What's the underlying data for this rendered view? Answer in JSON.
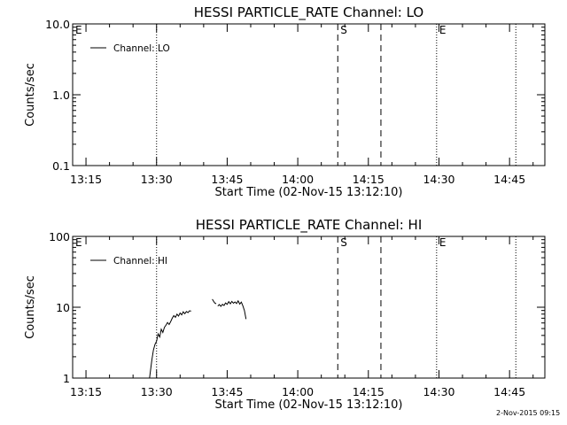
{
  "chart_data": [
    {
      "type": "line",
      "title": "HESSI PARTICLE_RATE Channel: LO",
      "xlabel": "Start Time (02-Nov-15 13:12:10)",
      "ylabel": "Counts/sec",
      "yscale": "log",
      "xlim": [
        "13:12:10",
        "14:52:30"
      ],
      "ylim": [
        0.1,
        10.0
      ],
      "xticks": [
        "13:15",
        "13:30",
        "13:45",
        "14:00",
        "14:15",
        "14:30",
        "14:45"
      ],
      "yticks": [
        "0.1",
        "1.0",
        "10.0"
      ],
      "legend": {
        "position": "top-left",
        "entries": [
          "Channel: LO"
        ]
      },
      "markers": [
        {
          "label": "E",
          "time": "13:12:10",
          "style": "dotted"
        },
        {
          "label": "",
          "time": "13:30:00",
          "style": "dotted"
        },
        {
          "label": "S",
          "time": "14:08:30",
          "style": "dashed"
        },
        {
          "label": "",
          "time": "14:17:40",
          "style": "dashed"
        },
        {
          "label": "E",
          "time": "14:29:30",
          "style": "dotted"
        },
        {
          "label": "",
          "time": "14:46:20",
          "style": "dotted"
        }
      ],
      "series": [
        {
          "name": "Channel: LO",
          "x": [],
          "y": []
        }
      ]
    },
    {
      "type": "line",
      "title": "HESSI PARTICLE_RATE Channel: HI",
      "xlabel": "Start Time (02-Nov-15 13:12:10)",
      "ylabel": "Counts/sec",
      "yscale": "log",
      "xlim": [
        "13:12:10",
        "14:52:30"
      ],
      "ylim": [
        1,
        100
      ],
      "xticks": [
        "13:15",
        "13:30",
        "13:45",
        "14:00",
        "14:15",
        "14:30",
        "14:45"
      ],
      "yticks": [
        "1",
        "10",
        "100"
      ],
      "legend": {
        "position": "top-left",
        "entries": [
          "Channel: HI"
        ]
      },
      "markers": [
        {
          "label": "E",
          "time": "13:12:10",
          "style": "dotted"
        },
        {
          "label": "",
          "time": "13:30:00",
          "style": "dotted"
        },
        {
          "label": "S",
          "time": "14:08:30",
          "style": "dashed"
        },
        {
          "label": "",
          "time": "14:17:40",
          "style": "dashed"
        },
        {
          "label": "E",
          "time": "14:29:30",
          "style": "dotted"
        },
        {
          "label": "",
          "time": "14:46:20",
          "style": "dotted"
        }
      ],
      "series": [
        {
          "name": "Channel: HI",
          "segments": [
            {
              "x": [
                "13:28:30",
                "13:29:00",
                "13:29:20",
                "13:29:40",
                "13:30:00",
                "13:30:20",
                "13:30:40",
                "13:31:00",
                "13:31:20",
                "13:31:40",
                "13:32:00",
                "13:32:20",
                "13:32:40",
                "13:33:00",
                "13:33:20",
                "13:33:40",
                "13:34:00",
                "13:34:20",
                "13:34:40",
                "13:35:00",
                "13:35:20",
                "13:35:40",
                "13:36:00",
                "13:36:20",
                "13:36:40",
                "13:37:00",
                "13:37:20"
              ],
              "y": [
                1.0,
                1.8,
                2.5,
                3.0,
                3.3,
                4.2,
                3.8,
                4.9,
                4.4,
                5.2,
                5.6,
                6.1,
                5.7,
                6.3,
                7.0,
                7.6,
                7.2,
                8.0,
                7.5,
                8.3,
                7.8,
                8.6,
                8.1,
                8.7,
                8.4,
                8.9,
                8.8
              ]
            },
            {
              "x": [
                "13:41:50",
                "13:42:20",
                "13:42:40"
              ],
              "y": [
                13.0,
                11.5,
                11.2
              ]
            },
            {
              "x": [
                "13:43:00",
                "13:43:20",
                "13:43:40",
                "13:44:00",
                "13:44:20",
                "13:44:40",
                "13:45:00",
                "13:45:20",
                "13:45:40",
                "13:46:00",
                "13:46:20",
                "13:46:40",
                "13:47:00",
                "13:47:20",
                "13:47:40",
                "13:48:00",
                "13:48:20",
                "13:48:40",
                "13:49:00"
              ],
              "y": [
                10.4,
                10.9,
                10.3,
                11.0,
                10.6,
                11.5,
                11.0,
                12.0,
                11.2,
                12.1,
                11.4,
                11.9,
                11.3,
                12.3,
                11.1,
                11.8,
                10.5,
                9.0,
                6.8
              ]
            }
          ]
        }
      ]
    }
  ],
  "footer": {
    "timestamp": "2-Nov-2015 09:15"
  }
}
